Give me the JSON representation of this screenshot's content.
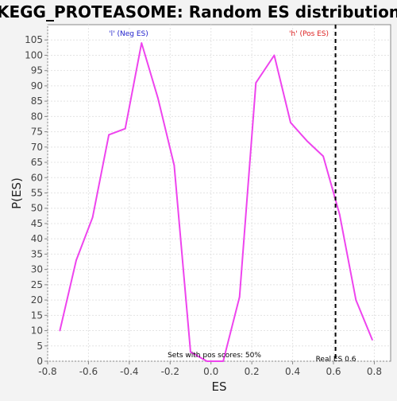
{
  "chart_data": {
    "type": "line",
    "title": "KEGG_PROTEASOME: Random ES distribution",
    "xlabel": "ES",
    "ylabel": "P(ES)",
    "xlim": [
      -0.8,
      0.88
    ],
    "ylim": [
      0,
      110
    ],
    "x_ticks": [
      "-0.8",
      "-0.6",
      "-0.4",
      "-0.2",
      "0.0",
      "0.2",
      "0.4",
      "0.6",
      "0.8"
    ],
    "x_tick_values": [
      -0.8,
      -0.6,
      -0.4,
      -0.2,
      0.0,
      0.2,
      0.4,
      0.6,
      0.8
    ],
    "y_ticks": [
      "0",
      "5",
      "10",
      "15",
      "20",
      "25",
      "30",
      "35",
      "40",
      "45",
      "50",
      "55",
      "60",
      "65",
      "70",
      "75",
      "80",
      "85",
      "90",
      "95",
      "100",
      "105"
    ],
    "y_tick_values": [
      0,
      5,
      10,
      15,
      20,
      25,
      30,
      35,
      40,
      45,
      50,
      55,
      60,
      65,
      70,
      75,
      80,
      85,
      90,
      95,
      100,
      105
    ],
    "grid": true,
    "series": [
      {
        "color": "#ee44ee",
        "x": [
          -0.74,
          -0.66,
          -0.58,
          -0.5,
          -0.42,
          -0.34,
          -0.26,
          -0.18,
          -0.1,
          -0.02,
          0.06,
          0.14,
          0.22,
          0.31,
          0.39,
          0.47,
          0.55,
          0.63,
          0.71,
          0.79
        ],
        "y": [
          10,
          33,
          47,
          74,
          76,
          104,
          86,
          64,
          3,
          0,
          0,
          21,
          91,
          100,
          78,
          72,
          67,
          48,
          20,
          7
        ]
      }
    ],
    "reference_line": {
      "x": 0.61,
      "style": "dashed",
      "color": "#000000"
    },
    "annotations": {
      "neg_label": "'l' (Neg ES)",
      "pos_label": "'h' (Pos ES)",
      "neg_color": "#2222cc",
      "pos_color": "#dd2222",
      "sets_text": "Sets with pos scores: 50%",
      "real_es_text": "Real ES 0.6"
    }
  }
}
